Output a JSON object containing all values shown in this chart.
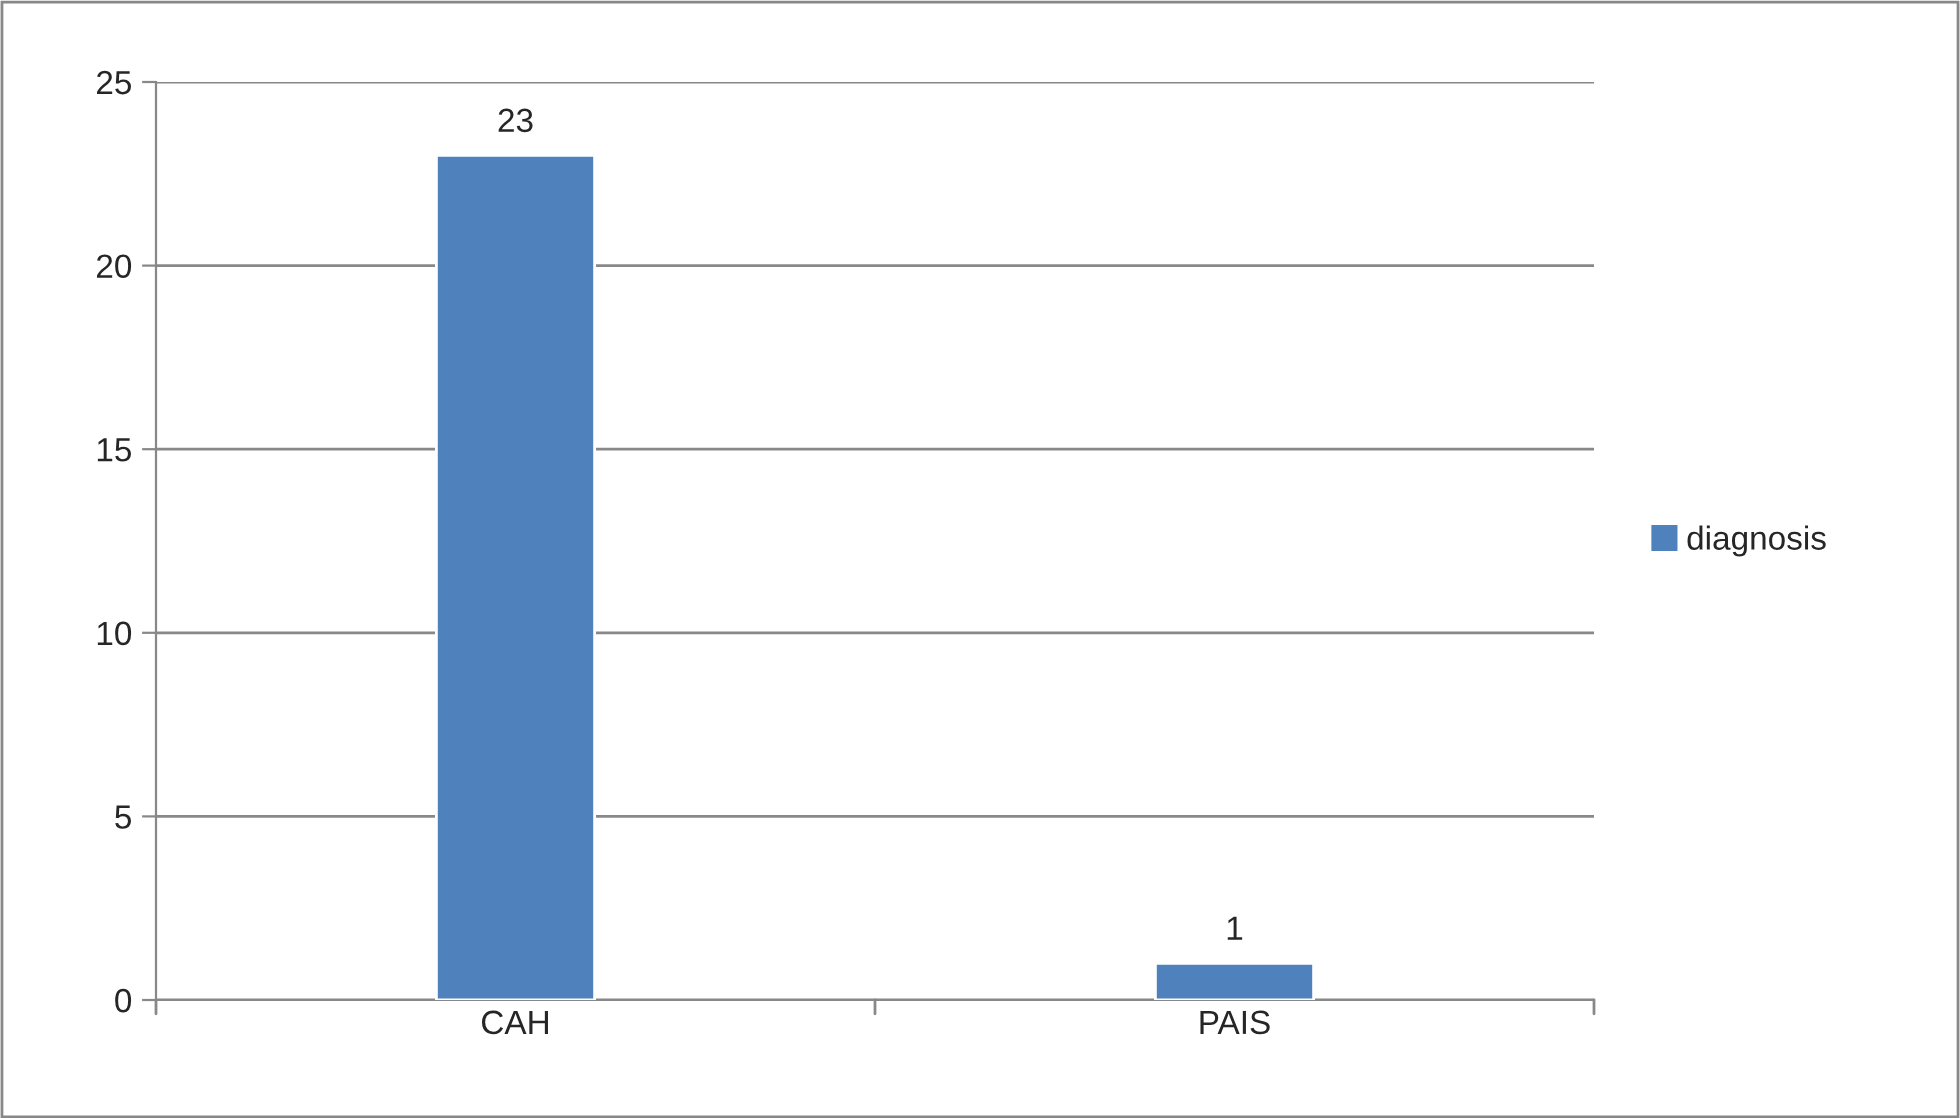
{
  "chart_data": {
    "type": "bar",
    "categories": [
      "CAH",
      "PAIS"
    ],
    "series": [
      {
        "name": "diagnosis",
        "color": "#4f81bd",
        "values": [
          23,
          1
        ]
      }
    ],
    "ylim": [
      0,
      25
    ],
    "yticks": [
      0,
      5,
      10,
      15,
      20,
      25
    ],
    "grid": "y",
    "legend": "right",
    "data_labels": true
  }
}
